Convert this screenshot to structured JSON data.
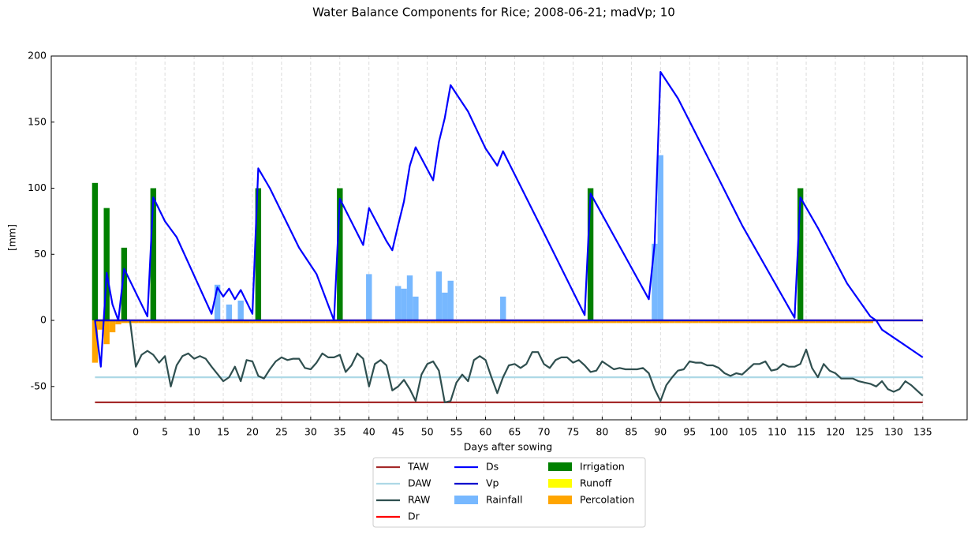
{
  "chart_data": {
    "type": "combo",
    "title": "Water Balance Components for Rice; 2008-06-21; madVp; 10",
    "xlabel": "Days after sowing",
    "ylabel": "[mm]",
    "xlim": [
      -14.5,
      142.6
    ],
    "ylim": [
      -75.2,
      200
    ],
    "xticks": [
      0,
      5,
      10,
      15,
      20,
      25,
      30,
      35,
      40,
      45,
      50,
      55,
      60,
      65,
      70,
      75,
      80,
      85,
      90,
      95,
      100,
      105,
      110,
      115,
      120,
      125,
      130,
      135
    ],
    "yticks": [
      -50,
      0,
      50,
      100,
      150,
      200
    ],
    "grid": "x",
    "legend": "lower center",
    "legend_ncol": 3,
    "series": [
      {
        "name": "TAW",
        "kind": "line",
        "color": "#a52a2a",
        "x": [
          -7,
          135
        ],
        "values": [
          -62,
          -62
        ]
      },
      {
        "name": "DAW",
        "kind": "line",
        "color": "#add8e6",
        "x": [
          -7,
          135
        ],
        "values": [
          -43,
          -43
        ]
      },
      {
        "name": "RAW",
        "kind": "line",
        "color": "#2f4f4f",
        "x": [
          -7,
          -1,
          0,
          1,
          2,
          3,
          4,
          5,
          6,
          7,
          8,
          9,
          10,
          11,
          12,
          13,
          15,
          16,
          17,
          18,
          19,
          20,
          21,
          22,
          23,
          24,
          25,
          26,
          27,
          28,
          29,
          30,
          31,
          32,
          33,
          34,
          35,
          36,
          37,
          38,
          39,
          40,
          41,
          42,
          43,
          44,
          45,
          46,
          47,
          48,
          49,
          50,
          51,
          52,
          53,
          54,
          55,
          56,
          57,
          58,
          59,
          60,
          61,
          62,
          63,
          64,
          65,
          66,
          67,
          68,
          69,
          70,
          71,
          72,
          73,
          74,
          75,
          76,
          77,
          78,
          79,
          80,
          81,
          82,
          83,
          84,
          85,
          86,
          87,
          88,
          89,
          90,
          91,
          92,
          93,
          94,
          95,
          96,
          97,
          98,
          99,
          100,
          101,
          102,
          103,
          104,
          105,
          106,
          107,
          108,
          109,
          110,
          111,
          112,
          113,
          114,
          115,
          116,
          117,
          118,
          119,
          120,
          121,
          122,
          123,
          124,
          125,
          126,
          127,
          128,
          129,
          130,
          131,
          132,
          133,
          134,
          135
        ],
        "values": [
          0,
          0,
          -35,
          -26,
          -23,
          -26,
          -32,
          -27,
          -50,
          -34,
          -27,
          -25,
          -29,
          -27,
          -29,
          -35,
          -46,
          -43,
          -35,
          -46,
          -30,
          -31,
          -42,
          -44,
          -37,
          -31,
          -28,
          -30,
          -29,
          -29,
          -36,
          -37,
          -32,
          -25,
          -28,
          -28,
          -26,
          -39,
          -34,
          -25,
          -29,
          -50,
          -33,
          -30,
          -34,
          -53,
          -50,
          -45,
          -52,
          -61,
          -41,
          -33,
          -31,
          -38,
          -62,
          -61,
          -47,
          -41,
          -46,
          -30,
          -27,
          -30,
          -43,
          -55,
          -43,
          -34,
          -33,
          -36,
          -33,
          -24,
          -24,
          -33,
          -36,
          -30,
          -28,
          -28,
          -32,
          -30,
          -34,
          -39,
          -38,
          -31,
          -34,
          -37,
          -36,
          -37,
          -37,
          -37,
          -36,
          -40,
          -52,
          -61,
          -49,
          -43,
          -38,
          -37,
          -31,
          -32,
          -32,
          -34,
          -34,
          -36,
          -40,
          -42,
          -40,
          -41,
          -37,
          -33,
          -33,
          -31,
          -38,
          -37,
          -33,
          -35,
          -35,
          -33,
          -22,
          -36,
          -43,
          -33,
          -38,
          -40,
          -44,
          -44,
          -44,
          -46,
          -47,
          -48,
          -50,
          -46,
          -52,
          -54,
          -52,
          -46,
          -49,
          -53,
          -57
        ]
      },
      {
        "name": "Dr",
        "kind": "line",
        "color": "#ff0000",
        "x": [
          -7,
          135
        ],
        "values": [
          0,
          0
        ]
      },
      {
        "name": "Ds",
        "kind": "line",
        "color": "#0000ff",
        "x": [
          -7,
          -6,
          -5,
          -4,
          -3,
          -2,
          2,
          3,
          5,
          7,
          13,
          14,
          15,
          16,
          17,
          18,
          20,
          21,
          23,
          28,
          31,
          34,
          35,
          39,
          40,
          43,
          44,
          45,
          46,
          47,
          48,
          51,
          52,
          53,
          54,
          57,
          60,
          62,
          63,
          69,
          77,
          78,
          88,
          89,
          90,
          93,
          100,
          104,
          113,
          114,
          117,
          122,
          126,
          127,
          128,
          131,
          133,
          135
        ],
        "values": [
          0,
          -35,
          36,
          12,
          0,
          39,
          3,
          93,
          75,
          63,
          5,
          25,
          18,
          24,
          16,
          23,
          5,
          115,
          100,
          55,
          35,
          0,
          92,
          57,
          85,
          60,
          53,
          72,
          90,
          117,
          131,
          106,
          135,
          153,
          178,
          158,
          130,
          117,
          128,
          75,
          4,
          96,
          16,
          58,
          188,
          168,
          107,
          72,
          2,
          93,
          70,
          28,
          3,
          0,
          -7,
          -16,
          -22,
          -28
        ]
      },
      {
        "name": "Vp",
        "kind": "line",
        "color": "#0000cd",
        "x": [
          -7,
          135
        ],
        "values": [
          0,
          0
        ]
      },
      {
        "name": "Rainfall",
        "kind": "bar",
        "color": "#77b8ff",
        "x": [
          14,
          16,
          18,
          40,
          45,
          46,
          47,
          48,
          52,
          53,
          54,
          63,
          89,
          90
        ],
        "values": [
          27,
          12,
          15,
          35,
          26,
          24,
          34,
          18,
          37,
          21,
          30,
          18,
          58,
          125
        ]
      },
      {
        "name": "Irrigation",
        "kind": "bar",
        "color": "#008000",
        "x": [
          -7,
          -5,
          -2,
          3,
          21,
          35,
          78,
          114
        ],
        "values": [
          104,
          85,
          55,
          100,
          100,
          100,
          100,
          100
        ]
      },
      {
        "name": "Runoff",
        "kind": "bar",
        "color": "#ffff00",
        "x": [],
        "values": []
      },
      {
        "name": "Percolation",
        "kind": "bar",
        "color": "#ffa500",
        "x": [
          -7,
          -6,
          -5,
          -4,
          -3,
          -2,
          -1,
          0,
          1,
          2,
          3,
          4,
          5,
          6,
          7,
          8,
          9,
          10,
          11,
          12,
          13,
          14,
          15,
          16,
          17,
          18,
          19,
          20,
          21,
          22,
          23,
          24,
          25,
          26,
          27,
          28,
          29,
          30,
          31,
          32,
          33,
          34,
          35,
          36,
          37,
          38,
          39,
          40,
          41,
          42,
          43,
          44,
          45,
          46,
          47,
          48,
          49,
          50,
          51,
          52,
          53,
          54,
          55,
          56,
          57,
          58,
          59,
          60,
          61,
          62,
          63,
          64,
          65,
          66,
          67,
          68,
          69,
          70,
          71,
          72,
          73,
          74,
          75,
          76,
          77,
          78,
          79,
          80,
          81,
          82,
          83,
          84,
          85,
          86,
          87,
          88,
          89,
          90,
          91,
          92,
          93,
          94,
          95,
          96,
          97,
          98,
          99,
          100,
          101,
          102,
          103,
          104,
          105,
          106,
          107,
          108,
          109,
          110,
          111,
          112,
          113,
          114,
          115,
          116,
          117,
          118,
          119,
          120,
          121,
          122,
          123,
          124,
          125,
          126
        ],
        "values": [
          -32,
          -7,
          -18,
          -9,
          -3,
          -2,
          -2,
          -2,
          -2,
          -2,
          -2,
          -2,
          -2,
          -2,
          -2,
          -2,
          -2,
          -2,
          -2,
          -2,
          -2,
          -2,
          -2,
          -2,
          -2,
          -2,
          -2,
          -2,
          -2,
          -2,
          -2,
          -2,
          -2,
          -2,
          -2,
          -2,
          -2,
          -2,
          -2,
          -2,
          -2,
          -2,
          -2,
          -2,
          -2,
          -2,
          -2,
          -2,
          -2,
          -2,
          -2,
          -2,
          -2,
          -2,
          -2,
          -2,
          -2,
          -2,
          -2,
          -2,
          -2,
          -2,
          -2,
          -2,
          -2,
          -2,
          -2,
          -2,
          -2,
          -2,
          -2,
          -2,
          -2,
          -2,
          -2,
          -2,
          -2,
          -2,
          -2,
          -2,
          -2,
          -2,
          -2,
          -2,
          -2,
          -2,
          -2,
          -2,
          -2,
          -2,
          -2,
          -2,
          -2,
          -2,
          -2,
          -2,
          -2,
          -2,
          -2,
          -2,
          -2,
          -2,
          -2,
          -2,
          -2,
          -2,
          -2,
          -2,
          -2,
          -2,
          -2,
          -2,
          -2,
          -2,
          -2,
          -2,
          -2,
          -2,
          -2,
          -2,
          -2,
          -2,
          -2,
          -2,
          -2,
          -2,
          -2,
          -2,
          -2,
          -2,
          -2,
          -2,
          -2,
          -2
        ]
      }
    ]
  }
}
